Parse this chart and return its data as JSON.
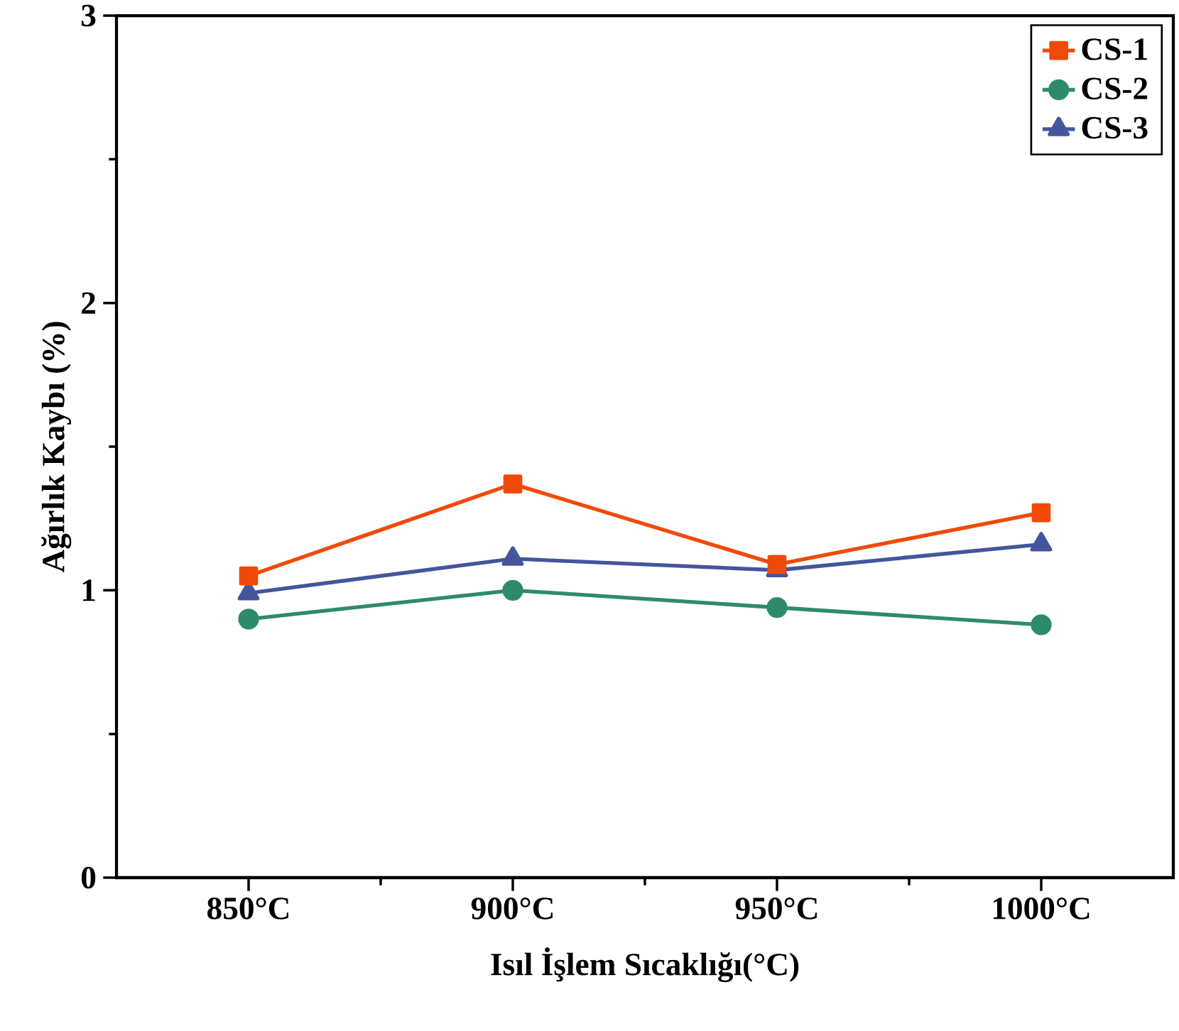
{
  "chart_data": {
    "type": "line",
    "xlabel": "Isıl İşlem Sıcaklığı(°C)",
    "ylabel": "Ağırlık Kaybı (%)",
    "categories": [
      "850°C",
      "900°C",
      "950°C",
      "1000°C"
    ],
    "series": [
      {
        "name": "CS-1",
        "color": "#f04a0a",
        "marker": "square",
        "values": [
          1.05,
          1.37,
          1.09,
          1.27
        ]
      },
      {
        "name": "CS-2",
        "color": "#2e8b6a",
        "marker": "circle",
        "values": [
          0.9,
          1.0,
          0.94,
          0.88
        ]
      },
      {
        "name": "CS-3",
        "color": "#43559c",
        "marker": "triangle",
        "values": [
          0.99,
          1.11,
          1.07,
          1.16
        ]
      }
    ],
    "ylim": [
      0,
      3
    ],
    "yticks": [
      0,
      {
        "value": 0.5,
        "label": null
      },
      1,
      {
        "value": 1.5,
        "label": null
      },
      2,
      {
        "value": 2.5,
        "label": null
      },
      3
    ],
    "legend": "top right",
    "grid": false,
    "line_style": "solid"
  }
}
